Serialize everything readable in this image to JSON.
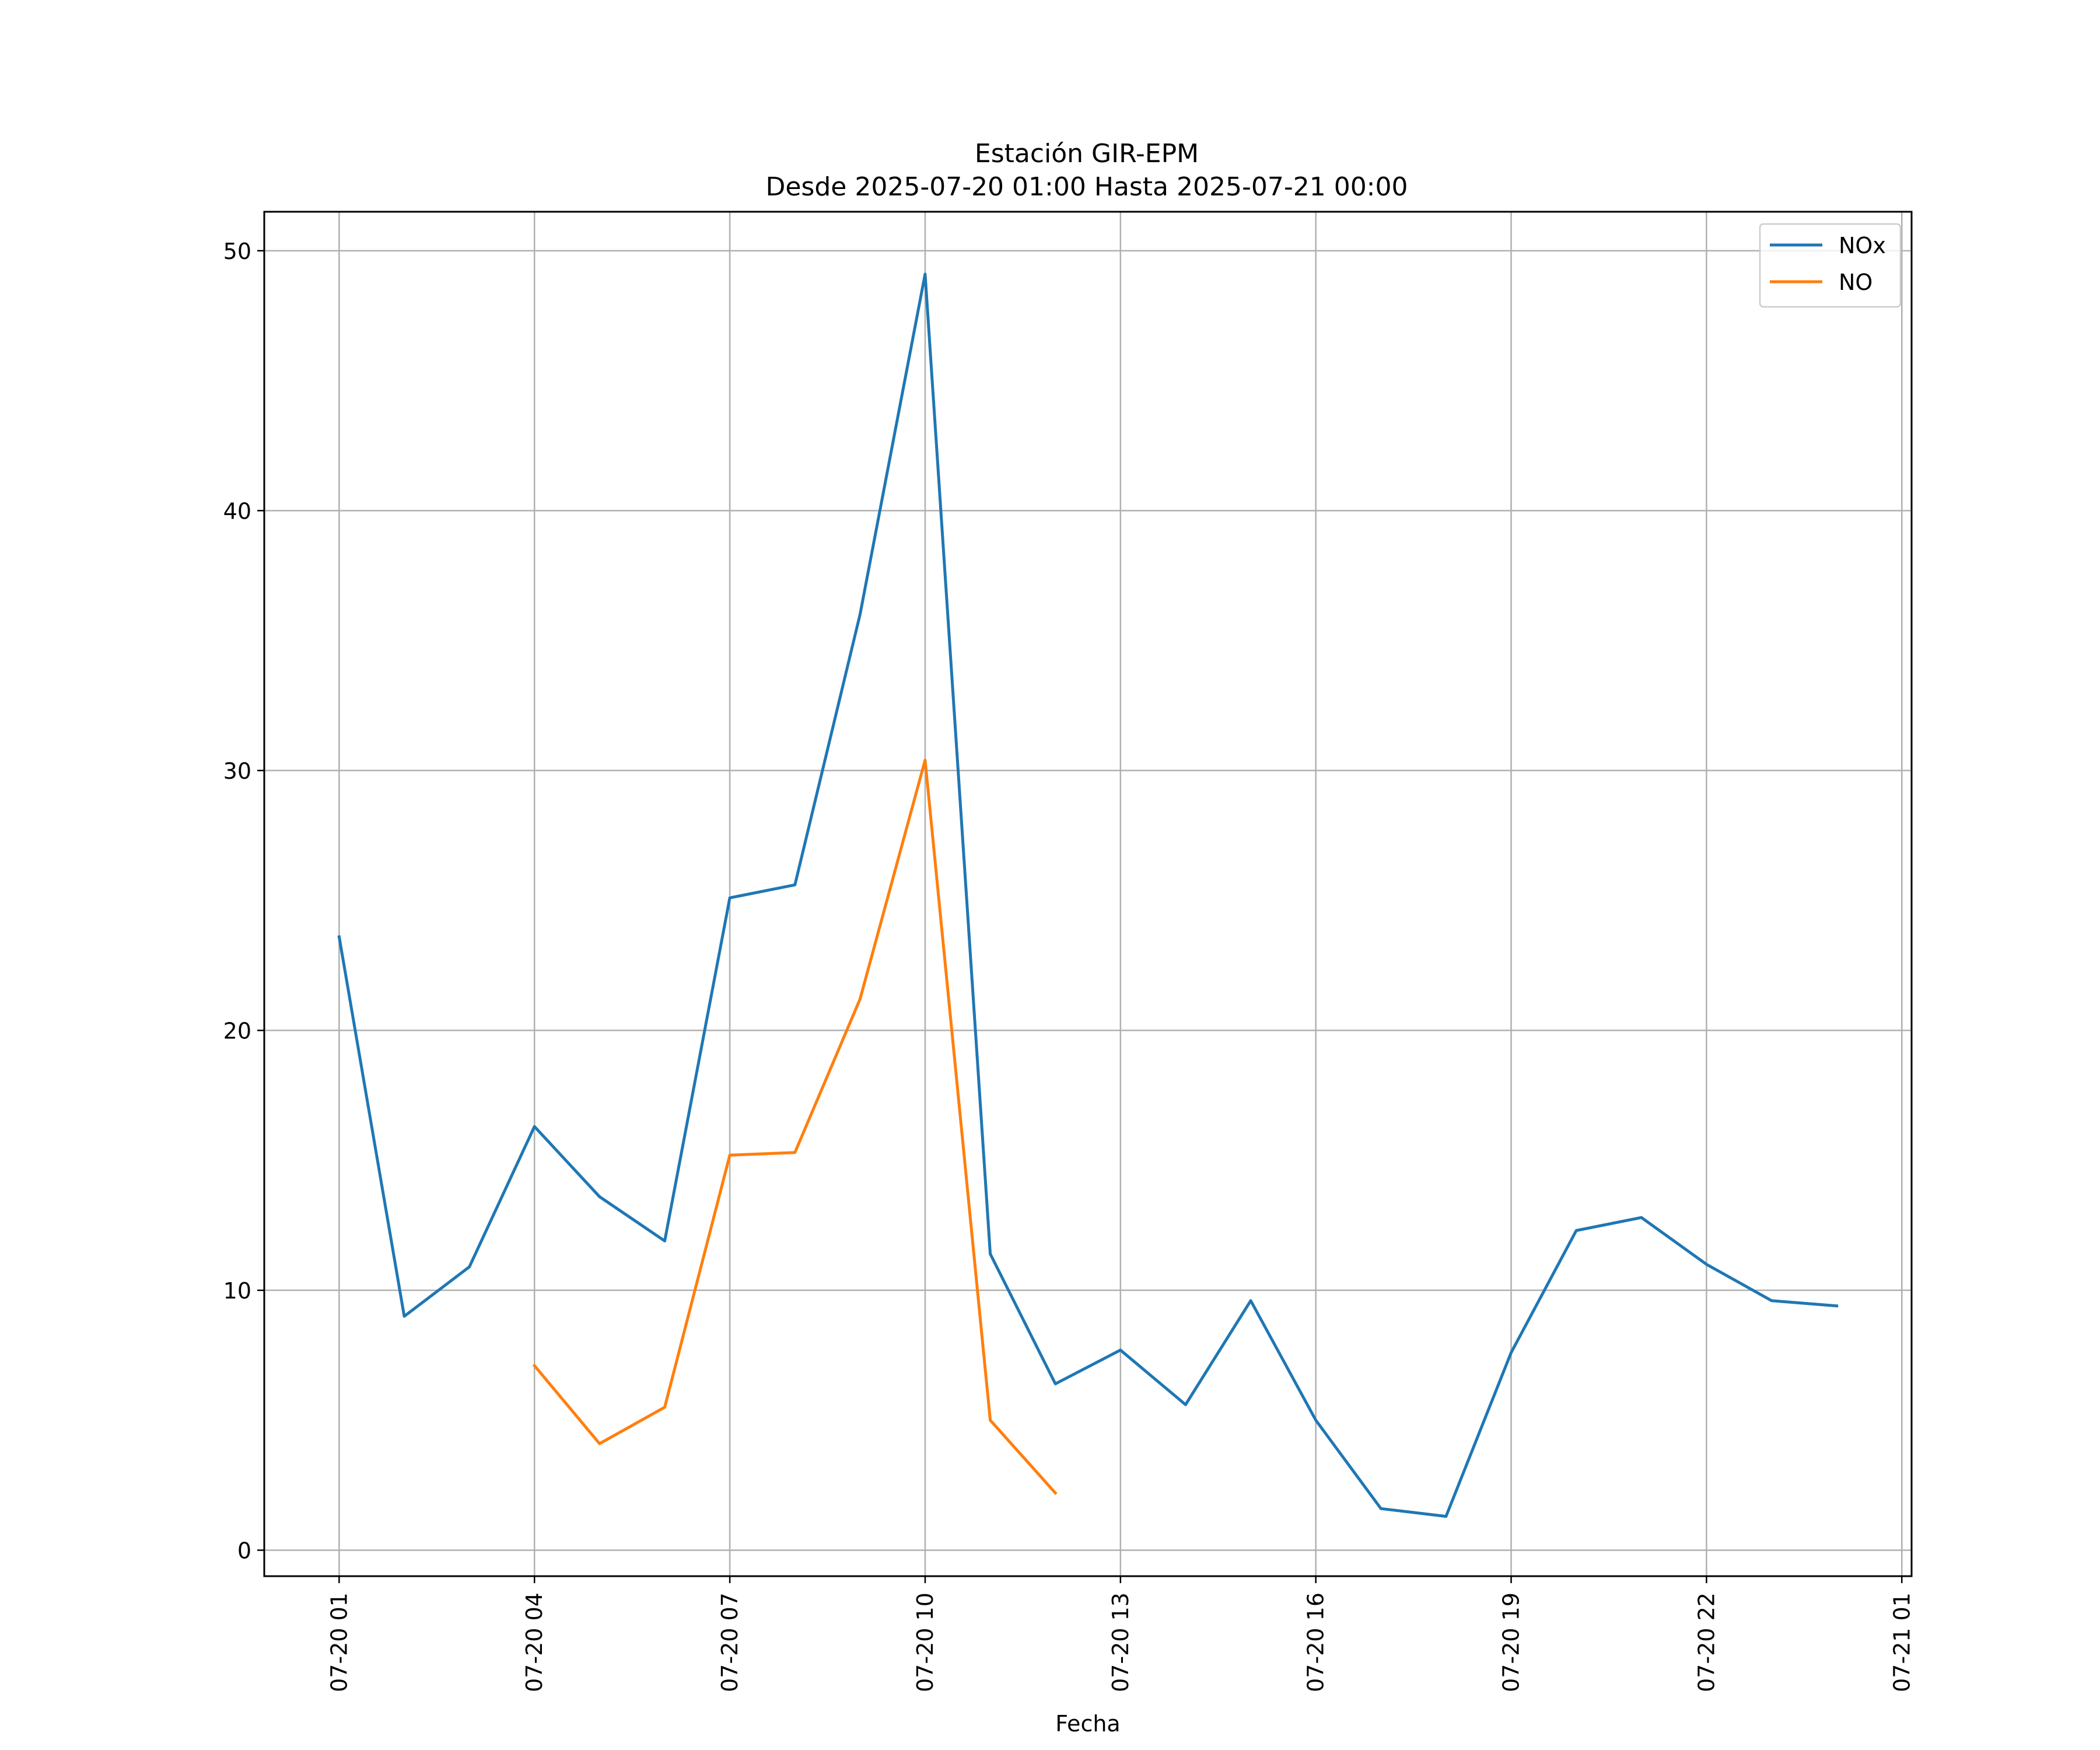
{
  "chart_data": {
    "type": "line",
    "title": "Estación GIR-EPM",
    "subtitle": "Desde 2025-07-20 01:00 Hasta 2025-07-21 00:00",
    "xlabel": "Fecha",
    "ylabel": "",
    "x_tick_labels": [
      "07-20 01",
      "07-20 04",
      "07-20 07",
      "07-20 10",
      "07-20 13",
      "07-20 16",
      "07-20 19",
      "07-20 22",
      "07-21 01"
    ],
    "x_tick_hours": [
      1,
      4,
      7,
      10,
      13,
      16,
      19,
      22,
      25
    ],
    "x_range_hours": [
      -0.15,
      25.15
    ],
    "y_ticks": [
      0,
      10,
      20,
      30,
      40,
      50
    ],
    "ylim": [
      -1.0,
      51.5
    ],
    "grid": true,
    "legend_position": "top-right",
    "series": [
      {
        "name": "NOx",
        "color": "#1f77b4",
        "points": [
          {
            "hour": 1,
            "value": 23.6
          },
          {
            "hour": 2,
            "value": 9.0
          },
          {
            "hour": 3,
            "value": 10.9
          },
          {
            "hour": 4,
            "value": 16.3
          },
          {
            "hour": 5,
            "value": 13.6
          },
          {
            "hour": 6,
            "value": 11.9
          },
          {
            "hour": 7,
            "value": 25.1
          },
          {
            "hour": 8,
            "value": 25.6
          },
          {
            "hour": 9,
            "value": 36.0
          },
          {
            "hour": 10,
            "value": 49.1
          },
          {
            "hour": 11,
            "value": 11.4
          },
          {
            "hour": 12,
            "value": 6.4
          },
          {
            "hour": 13,
            "value": 7.7
          },
          {
            "hour": 14,
            "value": 5.6
          },
          {
            "hour": 15,
            "value": 9.6
          },
          {
            "hour": 16,
            "value": 5.0
          },
          {
            "hour": 17,
            "value": 1.6
          },
          {
            "hour": 18,
            "value": 1.3
          },
          {
            "hour": 19,
            "value": 7.6
          },
          {
            "hour": 20,
            "value": 12.3
          },
          {
            "hour": 21,
            "value": 12.8
          },
          {
            "hour": 22,
            "value": 11.0
          },
          {
            "hour": 23,
            "value": 9.6
          },
          {
            "hour": 24,
            "value": 9.4
          }
        ]
      },
      {
        "name": "NO",
        "color": "#ff7f0e",
        "points": [
          {
            "hour": 4,
            "value": 7.1
          },
          {
            "hour": 5,
            "value": 4.1
          },
          {
            "hour": 6,
            "value": 5.5
          },
          {
            "hour": 7,
            "value": 15.2
          },
          {
            "hour": 8,
            "value": 15.3
          },
          {
            "hour": 9,
            "value": 21.2
          },
          {
            "hour": 10,
            "value": 30.4
          },
          {
            "hour": 11,
            "value": 5.0
          },
          {
            "hour": 12,
            "value": 2.2
          }
        ]
      }
    ]
  }
}
